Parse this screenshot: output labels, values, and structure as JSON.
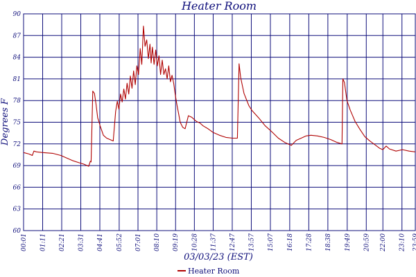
{
  "chart_data": {
    "type": "line",
    "title": "Heater Room",
    "xlabel": "03/03/23 (EST)",
    "ylabel": "Degrees F",
    "ylim": [
      60,
      90
    ],
    "y_ticks": [
      "60",
      "63",
      "66",
      "69",
      "72",
      "75",
      "78",
      "81",
      "84",
      "87",
      "90"
    ],
    "y_tick_values": [
      60,
      63,
      66,
      69,
      72,
      75,
      78,
      81,
      84,
      87,
      90
    ],
    "x_tick_labels": [
      "00:01",
      "01:11",
      "02:21",
      "03:31",
      "04:41",
      "05:52",
      "07:01",
      "08:10",
      "09:19",
      "10:28",
      "11:37",
      "12:47",
      "13:57",
      "15:07",
      "16:18",
      "17:28",
      "18:38",
      "19:49",
      "20:59",
      "22:00",
      "23:10",
      "23:59"
    ],
    "x_tick_hours": [
      0.0167,
      1.1833,
      2.35,
      3.5167,
      4.6833,
      5.8667,
      7.0167,
      8.1667,
      9.3167,
      10.4667,
      11.6167,
      12.7833,
      13.95,
      15.1167,
      16.3,
      17.4667,
      18.6333,
      19.8167,
      20.9833,
      22.0,
      23.1667,
      23.9833
    ],
    "x_range_hours": [
      0.0167,
      23.9833
    ],
    "grid": true,
    "legend_position": "bottom-center",
    "colors": {
      "line": "#b00000",
      "axis": "#0d0d7a"
    },
    "series": [
      {
        "name": "Heater Room",
        "x_hours": [
          0.02,
          0.35,
          0.55,
          0.65,
          0.8,
          1.2,
          1.8,
          2.3,
          2.6,
          3.0,
          3.4,
          3.7,
          4.0,
          4.1,
          4.15,
          4.25,
          4.35,
          4.45,
          4.55,
          4.6,
          4.7,
          4.9,
          5.1,
          5.3,
          5.5,
          5.65,
          5.75,
          5.85,
          5.95,
          6.05,
          6.15,
          6.25,
          6.35,
          6.45,
          6.55,
          6.65,
          6.75,
          6.85,
          6.95,
          7.05,
          7.15,
          7.25,
          7.35,
          7.45,
          7.55,
          7.65,
          7.75,
          7.82,
          7.9,
          8.0,
          8.1,
          8.2,
          8.3,
          8.4,
          8.5,
          8.6,
          8.7,
          8.8,
          8.9,
          9.0,
          9.1,
          9.2,
          9.3,
          9.4,
          9.5,
          9.6,
          9.75,
          9.9,
          10.1,
          10.3,
          10.5,
          10.6,
          10.8,
          11.0,
          11.3,
          11.6,
          12.0,
          12.4,
          12.8,
          13.1,
          13.2,
          13.3,
          13.5,
          13.8,
          14.0,
          14.4,
          14.8,
          15.2,
          15.6,
          16.0,
          16.4,
          16.7,
          17.0,
          17.3,
          17.6,
          18.0,
          18.4,
          18.8,
          19.2,
          19.5,
          19.55,
          19.65,
          19.8,
          20.0,
          20.3,
          20.6,
          20.9,
          21.2,
          21.5,
          21.8,
          22.0,
          22.2,
          22.4,
          22.8,
          23.2,
          23.6,
          23.98
        ],
        "values": [
          70.8,
          70.6,
          70.4,
          71.0,
          70.9,
          70.8,
          70.7,
          70.4,
          70.1,
          69.7,
          69.4,
          69.2,
          68.9,
          69.6,
          69.5,
          79.3,
          79.0,
          77.5,
          75.6,
          75.3,
          74.5,
          73.2,
          72.8,
          72.6,
          72.4,
          76.5,
          77.9,
          76.8,
          78.9,
          77.8,
          79.6,
          78.2,
          80.4,
          78.9,
          81.4,
          79.7,
          82.1,
          80.2,
          82.8,
          81.6,
          85.2,
          83.0,
          88.3,
          85.5,
          86.4,
          83.8,
          85.8,
          83.2,
          85.4,
          83.0,
          85.0,
          82.8,
          84.2,
          81.6,
          83.6,
          81.6,
          82.4,
          81.0,
          82.8,
          80.6,
          81.5,
          80.4,
          78.8,
          77.4,
          76.2,
          75.0,
          74.3,
          74.1,
          75.9,
          75.7,
          75.3,
          75.1,
          74.9,
          74.5,
          74.1,
          73.6,
          73.2,
          72.9,
          72.8,
          72.8,
          83.1,
          81.2,
          79.0,
          77.3,
          76.6,
          75.6,
          74.5,
          73.7,
          72.8,
          72.2,
          71.8,
          72.5,
          72.8,
          73.1,
          73.2,
          73.1,
          72.9,
          72.6,
          72.2,
          72.0,
          81.0,
          80.5,
          78.0,
          76.7,
          75.1,
          74.0,
          73.0,
          72.4,
          71.9,
          71.4,
          71.2,
          71.7,
          71.3,
          71.0,
          71.2,
          71.0,
          70.9
        ]
      }
    ]
  }
}
